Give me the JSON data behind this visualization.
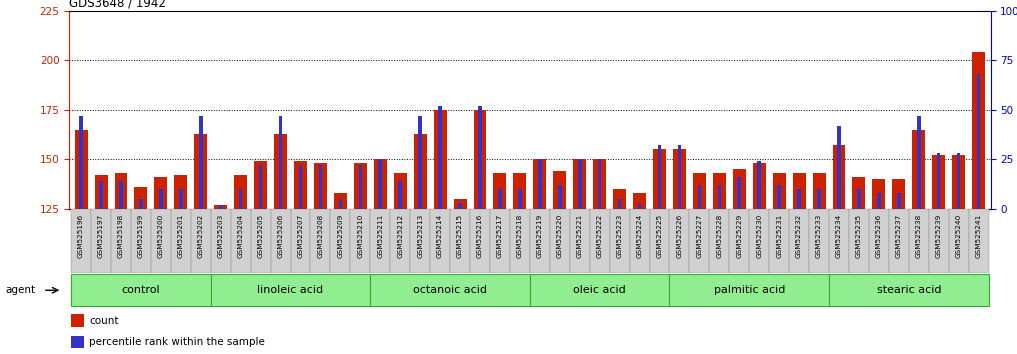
{
  "title": "GDS3648 / 1942",
  "samples": [
    "GSM525196",
    "GSM525197",
    "GSM525198",
    "GSM525199",
    "GSM525200",
    "GSM525201",
    "GSM525202",
    "GSM525203",
    "GSM525204",
    "GSM525205",
    "GSM525206",
    "GSM525207",
    "GSM525208",
    "GSM525209",
    "GSM525210",
    "GSM525211",
    "GSM525212",
    "GSM525213",
    "GSM525214",
    "GSM525215",
    "GSM525216",
    "GSM525217",
    "GSM525218",
    "GSM525219",
    "GSM525220",
    "GSM525221",
    "GSM525222",
    "GSM525223",
    "GSM525224",
    "GSM525225",
    "GSM525226",
    "GSM525227",
    "GSM525228",
    "GSM525229",
    "GSM525230",
    "GSM525231",
    "GSM525232",
    "GSM525233",
    "GSM525234",
    "GSM525235",
    "GSM525236",
    "GSM525237",
    "GSM525238",
    "GSM525239",
    "GSM525240",
    "GSM525241"
  ],
  "red_values": [
    165,
    142,
    143,
    136,
    141,
    142,
    163,
    127,
    142,
    149,
    163,
    149,
    148,
    133,
    148,
    150,
    143,
    163,
    175,
    130,
    175,
    143,
    143,
    150,
    144,
    150,
    150,
    135,
    133,
    155,
    155,
    143,
    143,
    145,
    148,
    143,
    143,
    143,
    157,
    141,
    140,
    140,
    165,
    152,
    152,
    204
  ],
  "blue_values_pct": [
    47,
    14,
    14,
    5,
    10,
    10,
    47,
    2,
    10,
    22,
    47,
    22,
    22,
    5,
    22,
    25,
    14,
    47,
    52,
    3,
    52,
    10,
    10,
    25,
    12,
    25,
    25,
    5,
    3,
    32,
    32,
    12,
    12,
    16,
    24,
    12,
    10,
    10,
    42,
    10,
    8,
    8,
    47,
    28,
    28,
    68
  ],
  "groups": [
    {
      "label": "control",
      "start": 0,
      "end": 7
    },
    {
      "label": "linoleic acid",
      "start": 7,
      "end": 15
    },
    {
      "label": "octanoic acid",
      "start": 15,
      "end": 23
    },
    {
      "label": "oleic acid",
      "start": 23,
      "end": 30
    },
    {
      "label": "palmitic acid",
      "start": 30,
      "end": 38
    },
    {
      "label": "stearic acid",
      "start": 38,
      "end": 46
    }
  ],
  "ylim_left": [
    125,
    225
  ],
  "ylim_right": [
    0,
    100
  ],
  "yticks_left": [
    125,
    150,
    175,
    200,
    225
  ],
  "yticks_right": [
    0,
    25,
    50,
    75,
    100
  ],
  "ytick_labels_right": [
    "0",
    "25",
    "50",
    "75",
    "100%"
  ],
  "bar_color_red": "#cc2200",
  "bar_color_blue": "#3333cc",
  "group_bg_color": "#90ee90",
  "group_border_color": "#33aa33",
  "axis_left_color": "#cc2200",
  "axis_right_color": "#0000cc",
  "dotted_line_color": "#000000"
}
